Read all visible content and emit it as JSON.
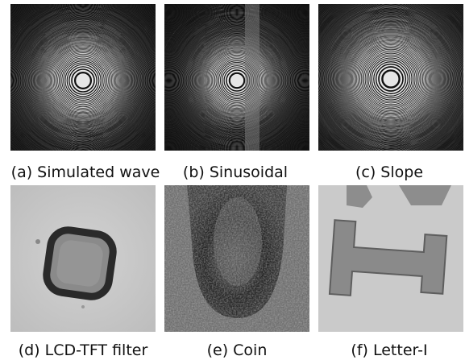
{
  "figure": {
    "panels": [
      {
        "caption": "(a) Simulated wave"
      },
      {
        "caption": "(b) Sinusoidal"
      },
      {
        "caption": "(c) Slope"
      },
      {
        "caption": "(d) LCD-TFT filter"
      },
      {
        "caption": "(e) Coin"
      },
      {
        "caption": "(f) Letter-I"
      }
    ]
  }
}
